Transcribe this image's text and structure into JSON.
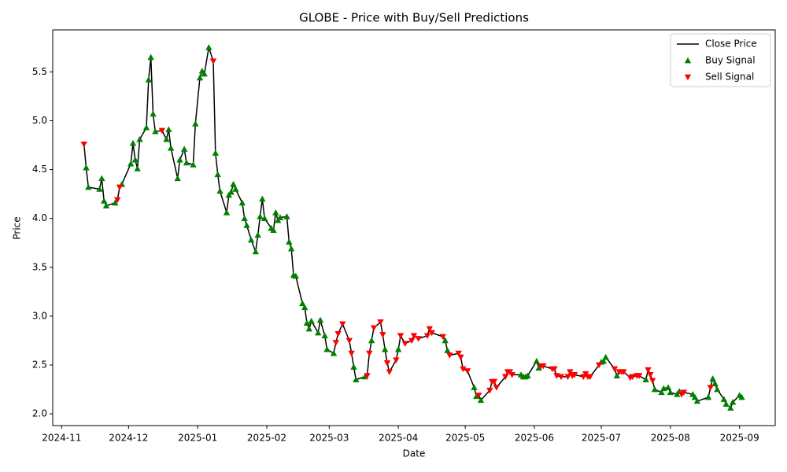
{
  "chart_data": {
    "type": "line",
    "title": "GLOBE - Price with Buy/Sell Predictions",
    "xlabel": "Date",
    "ylabel": "Price",
    "x": [
      "2024-11-11",
      "2024-11-12",
      "2024-11-13",
      "2024-11-18",
      "2024-11-19",
      "2024-11-20",
      "2024-11-21",
      "2024-11-25",
      "2024-11-26",
      "2024-11-27",
      "2024-11-28",
      "2024-12-02",
      "2024-12-03",
      "2024-12-04",
      "2024-12-05",
      "2024-12-06",
      "2024-12-09",
      "2024-12-10",
      "2024-12-11",
      "2024-12-12",
      "2024-12-13",
      "2024-12-16",
      "2024-12-18",
      "2024-12-19",
      "2024-12-20",
      "2024-12-23",
      "2024-12-24",
      "2024-12-26",
      "2024-12-27",
      "2024-12-30",
      "2024-12-31",
      "2025-01-02",
      "2025-01-03",
      "2025-01-04",
      "2025-01-06",
      "2025-01-08",
      "2025-01-09",
      "2025-01-10",
      "2025-01-11",
      "2025-01-14",
      "2025-01-15",
      "2025-01-16",
      "2025-01-17",
      "2025-01-18",
      "2025-01-21",
      "2025-01-22",
      "2025-01-23",
      "2025-01-25",
      "2025-01-27",
      "2025-01-28",
      "2025-01-29",
      "2025-01-30",
      "2025-01-31",
      "2025-02-03",
      "2025-02-04",
      "2025-02-05",
      "2025-02-06",
      "2025-02-07",
      "2025-02-10",
      "2025-02-11",
      "2025-02-12",
      "2025-02-13",
      "2025-02-14",
      "2025-02-17",
      "2025-02-18",
      "2025-02-19",
      "2025-02-20",
      "2025-02-21",
      "2025-02-24",
      "2025-02-25",
      "2025-02-27",
      "2025-02-28",
      "2025-03-03",
      "2025-03-04",
      "2025-03-05",
      "2025-03-07",
      "2025-03-10",
      "2025-03-11",
      "2025-03-12",
      "2025-03-13",
      "2025-03-17",
      "2025-03-18",
      "2025-03-19",
      "2025-03-20",
      "2025-03-21",
      "2025-03-24",
      "2025-03-25",
      "2025-03-26",
      "2025-03-27",
      "2025-03-28",
      "2025-03-31",
      "2025-04-01",
      "2025-04-02",
      "2025-04-04",
      "2025-04-07",
      "2025-04-08",
      "2025-04-10",
      "2025-04-14",
      "2025-04-15",
      "2025-04-16",
      "2025-04-21",
      "2025-04-22",
      "2025-04-23",
      "2025-04-24",
      "2025-04-28",
      "2025-04-29",
      "2025-04-30",
      "2025-05-02",
      "2025-05-05",
      "2025-05-06",
      "2025-05-07",
      "2025-05-08",
      "2025-05-12",
      "2025-05-13",
      "2025-05-14",
      "2025-05-15",
      "2025-05-19",
      "2025-05-20",
      "2025-05-21",
      "2025-05-22",
      "2025-05-26",
      "2025-05-27",
      "2025-05-28",
      "2025-05-29",
      "2025-06-02",
      "2025-06-03",
      "2025-06-04",
      "2025-06-05",
      "2025-06-09",
      "2025-06-10",
      "2025-06-11",
      "2025-06-13",
      "2025-06-16",
      "2025-06-17",
      "2025-06-18",
      "2025-06-19",
      "2025-06-23",
      "2025-06-24",
      "2025-06-25",
      "2025-06-26",
      "2025-06-30",
      "2025-07-01",
      "2025-07-02",
      "2025-07-03",
      "2025-07-07",
      "2025-07-08",
      "2025-07-09",
      "2025-07-10",
      "2025-07-11",
      "2025-07-14",
      "2025-07-15",
      "2025-07-17",
      "2025-07-18",
      "2025-07-21",
      "2025-07-22",
      "2025-07-23",
      "2025-07-24",
      "2025-07-25",
      "2025-07-28",
      "2025-07-29",
      "2025-07-31",
      "2025-08-01",
      "2025-08-04",
      "2025-08-05",
      "2025-08-06",
      "2025-08-07",
      "2025-08-11",
      "2025-08-12",
      "2025-08-13",
      "2025-08-18",
      "2025-08-19",
      "2025-08-20",
      "2025-08-21",
      "2025-08-22",
      "2025-08-25",
      "2025-08-26",
      "2025-08-28",
      "2025-08-29",
      "2025-09-01",
      "2025-09-02"
    ],
    "series": [
      {
        "name": "Close Price",
        "type": "line",
        "color": "#000000",
        "values": [
          4.76,
          4.52,
          4.32,
          4.3,
          4.41,
          4.18,
          4.13,
          4.16,
          4.19,
          4.32,
          4.35,
          4.56,
          4.77,
          4.6,
          4.51,
          4.81,
          4.93,
          5.42,
          5.65,
          5.07,
          4.89,
          4.9,
          4.81,
          4.91,
          4.72,
          4.41,
          4.6,
          4.71,
          4.57,
          4.55,
          4.97,
          5.44,
          5.51,
          5.48,
          5.75,
          5.61,
          4.67,
          4.45,
          4.28,
          4.06,
          4.24,
          4.27,
          4.35,
          4.3,
          4.16,
          4.0,
          3.93,
          3.78,
          3.66,
          3.83,
          4.02,
          4.2,
          4.0,
          3.9,
          3.88,
          4.06,
          3.98,
          4.01,
          4.02,
          3.76,
          3.69,
          3.42,
          3.41,
          3.13,
          3.09,
          2.93,
          2.87,
          2.95,
          2.83,
          2.96,
          2.8,
          2.66,
          2.62,
          2.73,
          2.82,
          2.92,
          2.75,
          2.62,
          2.48,
          2.35,
          2.38,
          2.39,
          2.62,
          2.75,
          2.88,
          2.94,
          2.81,
          2.66,
          2.52,
          2.43,
          2.55,
          2.66,
          2.8,
          2.72,
          2.75,
          2.8,
          2.77,
          2.8,
          2.87,
          2.83,
          2.79,
          2.75,
          2.65,
          2.6,
          2.62,
          2.58,
          2.46,
          2.44,
          2.27,
          2.18,
          2.19,
          2.14,
          2.24,
          2.33,
          2.33,
          2.27,
          2.38,
          2.43,
          2.43,
          2.4,
          2.4,
          2.38,
          2.38,
          2.39,
          2.54,
          2.47,
          2.49,
          2.49,
          2.46,
          2.46,
          2.39,
          2.38,
          2.38,
          2.43,
          2.39,
          2.4,
          2.38,
          2.41,
          2.38,
          2.38,
          2.5,
          2.53,
          2.54,
          2.58,
          2.46,
          2.39,
          2.43,
          2.43,
          2.43,
          2.37,
          2.38,
          2.39,
          2.39,
          2.35,
          2.45,
          2.4,
          2.34,
          2.25,
          2.22,
          2.26,
          2.27,
          2.22,
          2.2,
          2.23,
          2.2,
          2.22,
          2.2,
          2.17,
          2.13,
          2.17,
          2.27,
          2.36,
          2.31,
          2.25,
          2.15,
          2.1,
          2.06,
          2.12,
          2.19,
          2.17
        ]
      },
      {
        "name": "Buy Signal",
        "type": "scatter",
        "marker": "triangle-up",
        "color": "#008000",
        "values": [
          null,
          4.52,
          4.32,
          4.3,
          4.41,
          4.18,
          4.13,
          4.16,
          null,
          null,
          4.35,
          4.56,
          4.77,
          4.6,
          4.51,
          4.81,
          4.93,
          5.42,
          5.65,
          5.07,
          4.89,
          null,
          4.81,
          4.91,
          4.72,
          4.41,
          4.6,
          4.71,
          4.57,
          4.55,
          4.97,
          5.44,
          5.51,
          5.48,
          5.75,
          null,
          4.67,
          4.45,
          4.28,
          4.06,
          4.24,
          4.27,
          4.35,
          4.3,
          4.16,
          4.0,
          3.93,
          3.78,
          3.66,
          3.83,
          4.02,
          4.2,
          4.0,
          3.9,
          3.88,
          4.06,
          3.98,
          4.01,
          4.02,
          3.76,
          3.69,
          3.42,
          3.41,
          3.13,
          3.09,
          2.93,
          2.87,
          2.95,
          2.83,
          2.96,
          2.8,
          2.66,
          2.62,
          null,
          null,
          null,
          null,
          null,
          2.48,
          2.35,
          2.38,
          null,
          null,
          2.75,
          null,
          null,
          null,
          2.66,
          null,
          null,
          null,
          2.66,
          null,
          null,
          null,
          null,
          null,
          null,
          null,
          null,
          null,
          2.75,
          2.65,
          null,
          null,
          null,
          null,
          null,
          2.27,
          2.18,
          null,
          2.14,
          null,
          null,
          null,
          null,
          null,
          null,
          null,
          null,
          2.4,
          2.38,
          2.38,
          2.39,
          2.54,
          2.47,
          null,
          null,
          null,
          null,
          null,
          null,
          null,
          null,
          null,
          null,
          null,
          null,
          null,
          null,
          null,
          2.53,
          2.54,
          2.58,
          null,
          2.39,
          null,
          null,
          null,
          null,
          null,
          null,
          null,
          2.35,
          null,
          null,
          null,
          2.25,
          2.22,
          2.26,
          2.27,
          2.22,
          2.2,
          2.23,
          null,
          null,
          2.2,
          2.17,
          2.13,
          2.17,
          null,
          2.36,
          2.31,
          2.25,
          2.15,
          2.1,
          2.06,
          2.12,
          2.19,
          2.17
        ]
      },
      {
        "name": "Sell Signal",
        "type": "scatter",
        "marker": "triangle-down",
        "color": "#ff0000",
        "values": [
          4.76,
          null,
          null,
          null,
          null,
          null,
          null,
          null,
          4.19,
          4.32,
          null,
          null,
          null,
          null,
          null,
          null,
          null,
          null,
          null,
          null,
          null,
          4.9,
          null,
          null,
          null,
          null,
          null,
          null,
          null,
          null,
          null,
          null,
          null,
          null,
          null,
          5.61,
          null,
          null,
          null,
          null,
          null,
          null,
          null,
          null,
          null,
          null,
          null,
          null,
          null,
          null,
          null,
          null,
          null,
          null,
          null,
          null,
          null,
          null,
          null,
          null,
          null,
          null,
          null,
          null,
          null,
          null,
          null,
          null,
          null,
          null,
          null,
          null,
          null,
          2.73,
          2.82,
          2.92,
          2.75,
          2.62,
          null,
          null,
          null,
          2.39,
          2.62,
          null,
          2.88,
          2.94,
          2.81,
          null,
          2.52,
          2.43,
          2.55,
          null,
          2.8,
          2.72,
          2.75,
          2.8,
          2.77,
          2.8,
          2.87,
          2.83,
          2.79,
          null,
          null,
          2.6,
          2.62,
          2.58,
          2.46,
          2.44,
          null,
          null,
          2.19,
          null,
          2.24,
          2.33,
          2.33,
          2.27,
          2.38,
          2.43,
          2.43,
          2.4,
          null,
          null,
          null,
          null,
          null,
          null,
          2.49,
          2.49,
          2.46,
          2.46,
          2.39,
          2.38,
          2.38,
          2.43,
          2.39,
          2.4,
          2.38,
          2.41,
          2.38,
          2.38,
          2.5,
          null,
          null,
          null,
          2.46,
          null,
          2.43,
          2.43,
          2.43,
          2.37,
          2.38,
          2.39,
          2.39,
          null,
          2.45,
          2.4,
          2.34,
          null,
          null,
          null,
          null,
          null,
          null,
          null,
          2.2,
          2.22,
          null,
          null,
          null,
          null,
          2.27,
          null,
          null,
          null,
          null,
          null,
          null,
          null,
          null,
          null
        ]
      }
    ],
    "xlim": [
      "2024-10-28",
      "2025-09-17"
    ],
    "xticks": [
      {
        "value": "2024-11-01",
        "label": "2024-11"
      },
      {
        "value": "2024-12-01",
        "label": "2024-12"
      },
      {
        "value": "2025-01-01",
        "label": "2025-01"
      },
      {
        "value": "2025-02-01",
        "label": "2025-02"
      },
      {
        "value": "2025-03-01",
        "label": "2025-03"
      },
      {
        "value": "2025-04-01",
        "label": "2025-04"
      },
      {
        "value": "2025-05-01",
        "label": "2025-05"
      },
      {
        "value": "2025-06-01",
        "label": "2025-06"
      },
      {
        "value": "2025-07-01",
        "label": "2025-07"
      },
      {
        "value": "2025-08-01",
        "label": "2025-08"
      },
      {
        "value": "2025-09-01",
        "label": "2025-09"
      }
    ],
    "ylim": [
      1.88,
      5.93
    ],
    "yticks": [
      {
        "value": 2,
        "label": "2.0"
      },
      {
        "value": 2.5,
        "label": "2.5"
      },
      {
        "value": 3,
        "label": "3.0"
      },
      {
        "value": 3.5,
        "label": "3.5"
      },
      {
        "value": 4,
        "label": "4.0"
      },
      {
        "value": 4.5,
        "label": "4.5"
      },
      {
        "value": 5,
        "label": "5.0"
      },
      {
        "value": 5.5,
        "label": "5.5"
      }
    ],
    "grid": false,
    "legend": "upper right"
  }
}
